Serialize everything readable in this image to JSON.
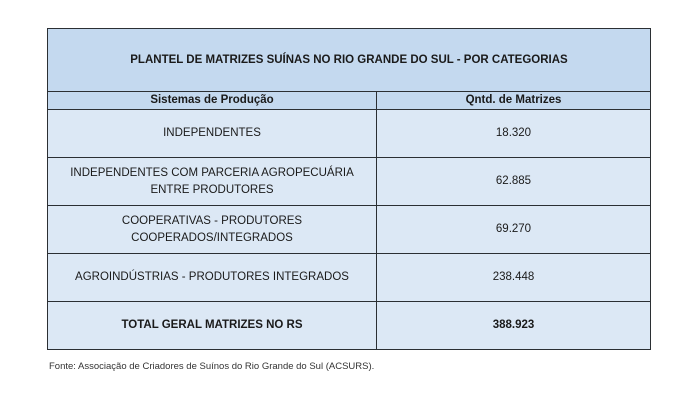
{
  "table": {
    "title": "PLANTEL DE MATRIZES SUÍNAS NO RIO GRANDE DO SUL - POR CATEGORIAS",
    "columns": [
      "Sistemas de Produção",
      "Qntd. de Matrizes"
    ],
    "rows": [
      {
        "system": "INDEPENDENTES",
        "count": "18.320"
      },
      {
        "system": "INDEPENDENTES COM PARCERIA AGROPECUÁRIA ENTRE PRODUTORES",
        "count": "62.885"
      },
      {
        "system": "COOPERATIVAS - PRODUTORES COOPERADOS/INTEGRADOS",
        "count": "69.270"
      },
      {
        "system": "AGROINDÚSTRIAS - PRODUTORES INTEGRADOS",
        "count": "238.448"
      }
    ],
    "total": {
      "label": "TOTAL GERAL MATRIZES NO RS",
      "count": "388.923"
    }
  },
  "source": "Fonte: Associação de Criadores de Suínos do Rio Grande do Sul (ACSURS).",
  "colors": {
    "header_bg": "#c4d9ef",
    "row_bg": "#dce8f5",
    "border": "#2b2f33"
  }
}
